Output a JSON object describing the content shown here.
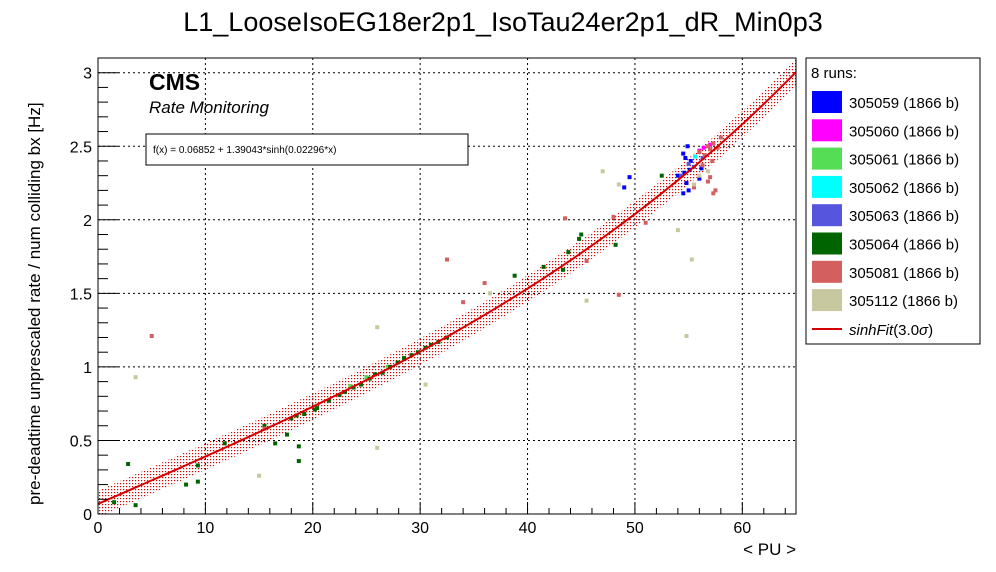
{
  "chart_data": {
    "type": "scatter",
    "title": "L1_LooseIsoEG18er2p1_IsoTau24er2p1_dR_Min0p3",
    "xlabel": "< PU >",
    "ylabel": "pre-deadtime unprescaled rate / num colliding bx [Hz]",
    "xlim": [
      0,
      65
    ],
    "ylim": [
      0,
      3.1
    ],
    "xticks": [
      "0",
      "10",
      "20",
      "30",
      "40",
      "50",
      "60"
    ],
    "yticks": [
      "0",
      "0.5",
      "1",
      "1.5",
      "2",
      "2.5",
      "3"
    ],
    "grid": true,
    "annotations": {
      "cms": "CMS",
      "subtitle": "Rate Monitoring",
      "fit_formula": "f(x) = 0.06852 + 1.39043*sinh(0.02296*x)"
    },
    "fit": {
      "name": "sinhFit(3.0σ)",
      "a": 0.06852,
      "b": 1.39043,
      "c": 0.02296,
      "band": 0.09,
      "color": "#d40000"
    },
    "legend": {
      "header": "8 runs:",
      "position": "right",
      "fit_label_main": "sinhFit",
      "fit_label_args": "(3.0",
      "fit_label_sigma": "σ",
      "fit_label_close": ")"
    },
    "series": [
      {
        "name": "305059 (1866 b)",
        "color": "#0000ff",
        "points": [
          [
            49.5,
            2.29
          ],
          [
            49.0,
            2.22
          ],
          [
            54.5,
            2.45
          ],
          [
            54.6,
            2.32
          ],
          [
            54.8,
            2.25
          ],
          [
            54.5,
            2.18
          ],
          [
            55.0,
            2.2
          ],
          [
            55.2,
            2.4
          ],
          [
            54.0,
            2.3
          ],
          [
            54.9,
            2.5
          ],
          [
            55.1,
            2.34
          ],
          [
            56.2,
            2.35
          ],
          [
            56.0,
            2.28
          ],
          [
            54.7,
            2.42
          ]
        ]
      },
      {
        "name": "305060 (1866 b)",
        "color": "#ff00ff",
        "points": [
          [
            56.0,
            2.47
          ],
          [
            56.4,
            2.49
          ],
          [
            57.0,
            2.51
          ]
        ]
      },
      {
        "name": "305061 (1866 b)",
        "color": "#55dd55",
        "points": [
          [
            23.5,
            0.87
          ],
          [
            25.0,
            0.93
          ],
          [
            27.0,
            1.0
          ]
        ]
      },
      {
        "name": "305062 (1866 b)",
        "color": "#00ffff",
        "points": [
          [
            55.6,
            2.43
          ]
        ]
      },
      {
        "name": "305063 (1866 b)",
        "color": "#5555dd",
        "points": [
          [
            55.0,
            2.38
          ],
          [
            55.5,
            2.36
          ],
          [
            56.3,
            2.42
          ],
          [
            54.3,
            2.3
          ]
        ]
      },
      {
        "name": "305064 (1866 b)",
        "color": "#006400",
        "points": [
          [
            1.5,
            0.08
          ],
          [
            2.8,
            0.34
          ],
          [
            3.5,
            0.06
          ],
          [
            8.2,
            0.2
          ],
          [
            9.3,
            0.33
          ],
          [
            9.3,
            0.22
          ],
          [
            11.8,
            0.48
          ],
          [
            15.5,
            0.6
          ],
          [
            16.5,
            0.48
          ],
          [
            17.6,
            0.54
          ],
          [
            18.0,
            0.65
          ],
          [
            18.5,
            0.67
          ],
          [
            18.7,
            0.46
          ],
          [
            18.7,
            0.36
          ],
          [
            19.2,
            0.68
          ],
          [
            20.2,
            0.71
          ],
          [
            20.4,
            0.72
          ],
          [
            21.5,
            0.77
          ],
          [
            22.5,
            0.81
          ],
          [
            23.0,
            0.83
          ],
          [
            23.8,
            0.86
          ],
          [
            24.5,
            0.88
          ],
          [
            25.3,
            0.92
          ],
          [
            25.8,
            0.95
          ],
          [
            26.5,
            0.96
          ],
          [
            27.2,
            1.0
          ],
          [
            27.9,
            1.03
          ],
          [
            28.5,
            1.06
          ],
          [
            29.2,
            1.08
          ],
          [
            29.8,
            1.1
          ],
          [
            30.5,
            1.13
          ],
          [
            31.0,
            1.15
          ],
          [
            31.7,
            1.17
          ],
          [
            32.5,
            1.2
          ],
          [
            38.8,
            1.62
          ],
          [
            41.5,
            1.68
          ],
          [
            43.3,
            1.66
          ],
          [
            43.8,
            1.78
          ],
          [
            44.8,
            1.87
          ],
          [
            45.0,
            1.9
          ],
          [
            48.2,
            1.83
          ],
          [
            52.5,
            2.3
          ]
        ]
      },
      {
        "name": "305081 (1866 b)",
        "color": "#d45f5f",
        "points": [
          [
            5.0,
            1.21
          ],
          [
            15.5,
            0.58
          ],
          [
            32.5,
            1.73
          ],
          [
            34.0,
            1.44
          ],
          [
            36.0,
            1.57
          ],
          [
            43.5,
            2.01
          ],
          [
            45.5,
            1.72
          ],
          [
            48.5,
            1.49
          ],
          [
            48.0,
            2.02
          ],
          [
            51.0,
            1.98
          ],
          [
            55.5,
            2.22
          ],
          [
            56.5,
            2.44
          ],
          [
            56.8,
            2.5
          ],
          [
            57.0,
            2.48
          ],
          [
            57.3,
            2.52
          ],
          [
            57.7,
            2.49
          ],
          [
            56.0,
            2.46
          ],
          [
            57.2,
            2.4
          ],
          [
            57.0,
            2.29
          ],
          [
            57.5,
            2.2
          ],
          [
            57.3,
            2.18
          ],
          [
            56.3,
            2.37
          ],
          [
            58.0,
            2.56
          ],
          [
            56.8,
            2.26
          ]
        ]
      },
      {
        "name": "305112 (1866 b)",
        "color": "#c8c8a0",
        "points": [
          [
            3.5,
            0.93
          ],
          [
            15.0,
            0.26
          ],
          [
            26.0,
            0.45
          ],
          [
            26.0,
            1.27
          ],
          [
            30.5,
            0.88
          ],
          [
            36.5,
            1.5
          ],
          [
            45.5,
            1.45
          ],
          [
            47.0,
            2.33
          ],
          [
            48.5,
            2.24
          ],
          [
            49.0,
            1.98
          ],
          [
            54.0,
            1.93
          ],
          [
            54.8,
            1.21
          ],
          [
            55.3,
            1.73
          ],
          [
            55.5,
            2.24
          ],
          [
            56.0,
            2.3
          ],
          [
            56.8,
            2.33
          ]
        ]
      }
    ]
  }
}
